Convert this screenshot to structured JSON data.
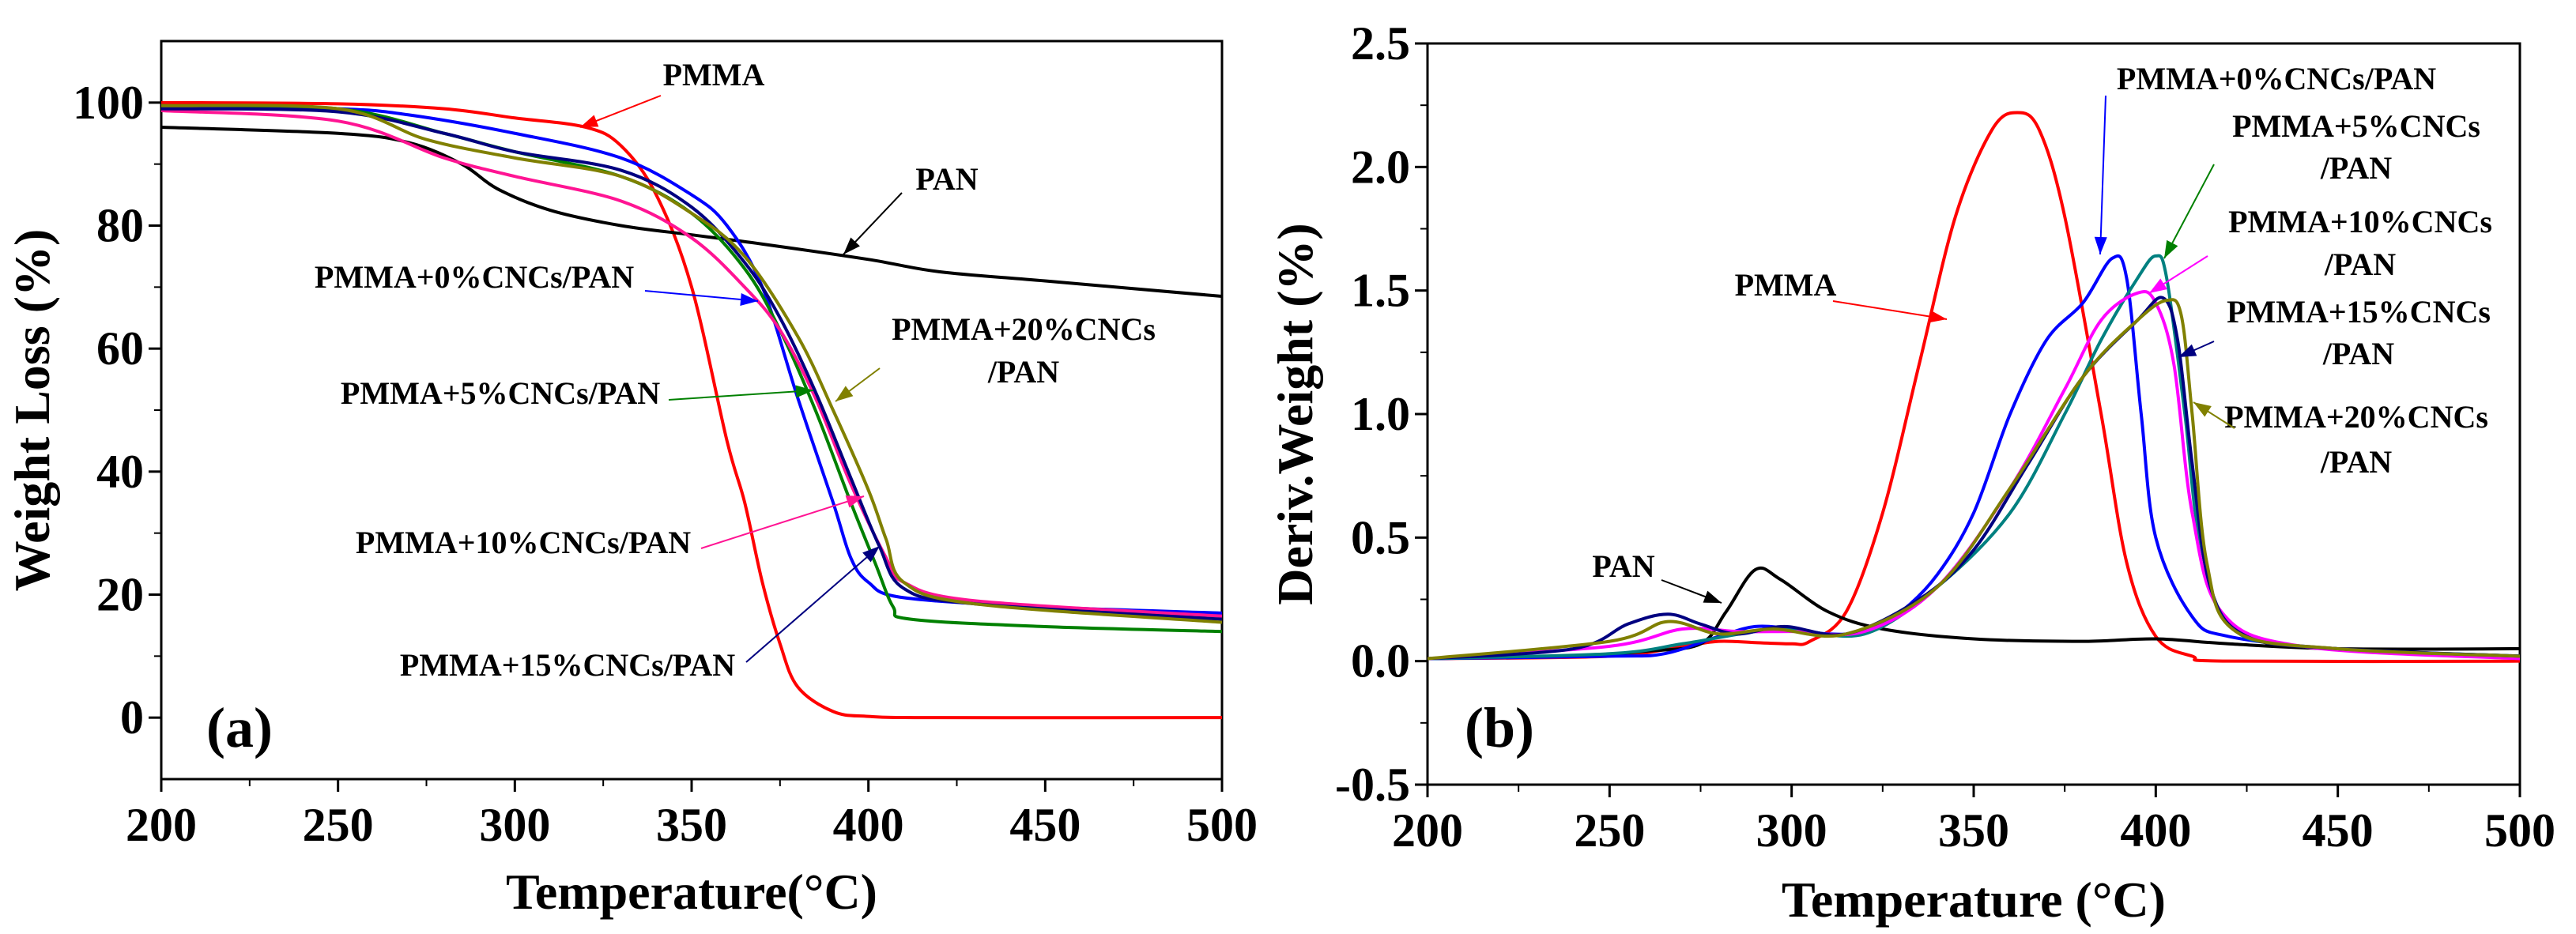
{
  "chart_data": [
    {
      "type": "line",
      "panel_label": "(a)",
      "xlabel": "Temperature(°C)",
      "ylabel": "Weight Loss (%)",
      "xlim": [
        200,
        500
      ],
      "ylim": [
        -10,
        110
      ],
      "xticks": [
        200,
        250,
        300,
        350,
        400,
        450,
        500
      ],
      "yticks": [
        0,
        20,
        40,
        60,
        80,
        100
      ],
      "grid": false,
      "series": [
        {
          "name": "PMMA",
          "color": "#ff0000",
          "points": [
            [
              200,
              100
            ],
            [
              250,
              99.8
            ],
            [
              280,
              99
            ],
            [
              300,
              97.5
            ],
            [
              320,
              96
            ],
            [
              330,
              93
            ],
            [
              340,
              85
            ],
            [
              350,
              70
            ],
            [
              360,
              45
            ],
            [
              365,
              35
            ],
            [
              370,
              22
            ],
            [
              375,
              12
            ],
            [
              380,
              5
            ],
            [
              390,
              1
            ],
            [
              400,
              0.2
            ],
            [
              420,
              0
            ],
            [
              500,
              0
            ]
          ]
        },
        {
          "name": "PAN",
          "color": "#000000",
          "points": [
            [
              200,
              96
            ],
            [
              250,
              95
            ],
            [
              270,
              93.5
            ],
            [
              285,
              90
            ],
            [
              295,
              86
            ],
            [
              310,
              82.5
            ],
            [
              330,
              80
            ],
            [
              350,
              78.5
            ],
            [
              370,
              77
            ],
            [
              400,
              74.5
            ],
            [
              420,
              72.5
            ],
            [
              450,
              71
            ],
            [
              500,
              68.5
            ]
          ]
        },
        {
          "name": "PMMA+0%CNCs/PAN",
          "color": "#0000ff",
          "points": [
            [
              200,
              99.5
            ],
            [
              250,
              99
            ],
            [
              270,
              98
            ],
            [
              300,
              95
            ],
            [
              330,
              91
            ],
            [
              350,
              85
            ],
            [
              360,
              80
            ],
            [
              370,
              70
            ],
            [
              380,
              52
            ],
            [
              390,
              35
            ],
            [
              395,
              26
            ],
            [
              400,
              22
            ],
            [
              410,
              19.5
            ],
            [
              450,
              18
            ],
            [
              500,
              17
            ]
          ]
        },
        {
          "name": "PMMA+5%CNCs/PAN",
          "color": "#008000",
          "points": [
            [
              200,
              99.5
            ],
            [
              250,
              99
            ],
            [
              280,
              95
            ],
            [
              300,
              92
            ],
            [
              330,
              88
            ],
            [
              350,
              82
            ],
            [
              365,
              73
            ],
            [
              375,
              63
            ],
            [
              385,
              50
            ],
            [
              395,
              35
            ],
            [
              402,
              25
            ],
            [
              407,
              18
            ],
            [
              412,
              16
            ],
            [
              450,
              14.8
            ],
            [
              500,
              14
            ]
          ]
        },
        {
          "name": "PMMA+10%CNCs/PAN",
          "color": "#ff1493",
          "points": [
            [
              200,
              98.7
            ],
            [
              250,
              97
            ],
            [
              280,
              91
            ],
            [
              300,
              88
            ],
            [
              330,
              84
            ],
            [
              350,
              78
            ],
            [
              365,
              70
            ],
            [
              375,
              63
            ],
            [
              385,
              52
            ],
            [
              395,
              38
            ],
            [
              405,
              26
            ],
            [
              410,
              22
            ],
            [
              430,
              19
            ],
            [
              500,
              16.5
            ]
          ]
        },
        {
          "name": "PMMA+15%CNCs/PAN",
          "color": "#000080",
          "points": [
            [
              200,
              99
            ],
            [
              250,
              98.5
            ],
            [
              280,
              95
            ],
            [
              300,
              92
            ],
            [
              330,
              89
            ],
            [
              350,
              83
            ],
            [
              365,
              74
            ],
            [
              375,
              65
            ],
            [
              385,
              53
            ],
            [
              395,
              39
            ],
            [
              403,
              28
            ],
            [
              410,
              21
            ],
            [
              430,
              18.5
            ],
            [
              500,
              16
            ]
          ]
        },
        {
          "name": "PMMA+20%CNCs/PAN",
          "color": "#808000",
          "points": [
            [
              200,
              99.5
            ],
            [
              250,
              99
            ],
            [
              275,
              94
            ],
            [
              300,
              91
            ],
            [
              330,
              88
            ],
            [
              350,
              82
            ],
            [
              365,
              75
            ],
            [
              380,
              62
            ],
            [
              390,
              50
            ],
            [
              400,
              37
            ],
            [
              405,
              29
            ],
            [
              410,
              22
            ],
            [
              430,
              18.5
            ],
            [
              500,
              15.5
            ]
          ]
        }
      ],
      "annotations": [
        {
          "lines": [
            "PMMA"
          ],
          "color": "#ff0000"
        },
        {
          "lines": [
            "PAN"
          ],
          "color": "#000000"
        },
        {
          "lines": [
            "PMMA+0%CNCs/PAN"
          ],
          "color": "#0000ff"
        },
        {
          "lines": [
            "PMMA+20%CNCs",
            "/PAN"
          ],
          "color": "#808000"
        },
        {
          "lines": [
            "PMMA+5%CNCs/PAN"
          ],
          "color": "#008000"
        },
        {
          "lines": [
            "PMMA+10%CNCs/PAN"
          ],
          "color": "#ff1493"
        },
        {
          "lines": [
            "PMMA+15%CNCs/PAN"
          ],
          "color": "#000080"
        }
      ]
    },
    {
      "type": "line",
      "panel_label": "(b)",
      "xlabel": "Temperature (°C)",
      "ylabel": "Deriv.Weight (%)",
      "xlim": [
        200,
        500
      ],
      "ylim": [
        -0.5,
        2.5
      ],
      "xticks": [
        200,
        250,
        300,
        350,
        400,
        450,
        500
      ],
      "yticks": [
        "-0.5",
        "0.0",
        "0.5",
        "1.0",
        "1.5",
        "2.0",
        "2.5"
      ],
      "grid": false,
      "series": [
        {
          "name": "PMMA",
          "color": "#ff0000",
          "points": [
            [
              200,
              0.01
            ],
            [
              250,
              0.02
            ],
            [
              270,
              0.06
            ],
            [
              280,
              0.08
            ],
            [
              290,
              0.075
            ],
            [
              300,
              0.07
            ],
            [
              305,
              0.08
            ],
            [
              315,
              0.2
            ],
            [
              325,
              0.6
            ],
            [
              335,
              1.2
            ],
            [
              345,
              1.8
            ],
            [
              355,
              2.15
            ],
            [
              362,
              2.22
            ],
            [
              368,
              2.15
            ],
            [
              375,
              1.8
            ],
            [
              385,
              1.0
            ],
            [
              392,
              0.4
            ],
            [
              400,
              0.1
            ],
            [
              410,
              0.02
            ],
            [
              420,
              0
            ],
            [
              500,
              0
            ]
          ]
        },
        {
          "name": "PAN",
          "color": "#000000",
          "points": [
            [
              200,
              0.01
            ],
            [
              240,
              0.02
            ],
            [
              260,
              0.04
            ],
            [
              275,
              0.07
            ],
            [
              282,
              0.2
            ],
            [
              290,
              0.37
            ],
            [
              297,
              0.33
            ],
            [
              310,
              0.2
            ],
            [
              325,
              0.13
            ],
            [
              350,
              0.09
            ],
            [
              380,
              0.08
            ],
            [
              400,
              0.09
            ],
            [
              420,
              0.07
            ],
            [
              450,
              0.05
            ],
            [
              500,
              0.05
            ]
          ]
        },
        {
          "name": "PMMA+0%CNCs/PAN",
          "color": "#0000ff",
          "points": [
            [
              200,
              0.01
            ],
            [
              250,
              0.02
            ],
            [
              265,
              0.03
            ],
            [
              280,
              0.1
            ],
            [
              290,
              0.14
            ],
            [
              300,
              0.13
            ],
            [
              310,
              0.11
            ],
            [
              320,
              0.12
            ],
            [
              330,
              0.2
            ],
            [
              340,
              0.35
            ],
            [
              350,
              0.6
            ],
            [
              360,
              1.0
            ],
            [
              370,
              1.3
            ],
            [
              380,
              1.45
            ],
            [
              388,
              1.63
            ],
            [
              392,
              1.55
            ],
            [
              396,
              1.0
            ],
            [
              400,
              0.5
            ],
            [
              410,
              0.18
            ],
            [
              420,
              0.1
            ],
            [
              450,
              0.05
            ],
            [
              500,
              0.02
            ]
          ]
        },
        {
          "name": "PMMA+5%CNCs/PAN",
          "color": "#008080",
          "points": [
            [
              200,
              0.01
            ],
            [
              250,
              0.03
            ],
            [
              270,
              0.07
            ],
            [
              290,
              0.12
            ],
            [
              300,
              0.13
            ],
            [
              320,
              0.11
            ],
            [
              340,
              0.3
            ],
            [
              360,
              0.6
            ],
            [
              375,
              1.0
            ],
            [
              385,
              1.3
            ],
            [
              395,
              1.55
            ],
            [
              400,
              1.64
            ],
            [
              403,
              1.55
            ],
            [
              408,
              1.0
            ],
            [
              412,
              0.5
            ],
            [
              420,
              0.15
            ],
            [
              440,
              0.06
            ],
            [
              500,
              0.02
            ]
          ]
        },
        {
          "name": "PMMA+10%CNCs/PAN",
          "color": "#ff00ff",
          "points": [
            [
              200,
              0.01
            ],
            [
              250,
              0.06
            ],
            [
              270,
              0.13
            ],
            [
              285,
              0.12
            ],
            [
              300,
              0.12
            ],
            [
              320,
              0.12
            ],
            [
              340,
              0.3
            ],
            [
              360,
              0.7
            ],
            [
              375,
              1.1
            ],
            [
              385,
              1.38
            ],
            [
              395,
              1.49
            ],
            [
              400,
              1.45
            ],
            [
              405,
              1.2
            ],
            [
              410,
              0.6
            ],
            [
              418,
              0.2
            ],
            [
              440,
              0.06
            ],
            [
              500,
              0.01
            ]
          ]
        },
        {
          "name": "PMMA+15%CNCs/PAN",
          "color": "#000080",
          "points": [
            [
              200,
              0.01
            ],
            [
              240,
              0.05
            ],
            [
              255,
              0.15
            ],
            [
              266,
              0.19
            ],
            [
              275,
              0.15
            ],
            [
              285,
              0.11
            ],
            [
              298,
              0.14
            ],
            [
              315,
              0.11
            ],
            [
              335,
              0.25
            ],
            [
              350,
              0.45
            ],
            [
              365,
              0.8
            ],
            [
              380,
              1.15
            ],
            [
              395,
              1.38
            ],
            [
              402,
              1.47
            ],
            [
              406,
              1.3
            ],
            [
              410,
              0.8
            ],
            [
              415,
              0.3
            ],
            [
              425,
              0.1
            ],
            [
              450,
              0.05
            ],
            [
              500,
              0.02
            ]
          ]
        },
        {
          "name": "PMMA+20%CNCs/PAN",
          "color": "#808000",
          "points": [
            [
              200,
              0.01
            ],
            [
              250,
              0.08
            ],
            [
              266,
              0.16
            ],
            [
              280,
              0.11
            ],
            [
              295,
              0.13
            ],
            [
              315,
              0.11
            ],
            [
              340,
              0.3
            ],
            [
              360,
              0.7
            ],
            [
              380,
              1.15
            ],
            [
              395,
              1.38
            ],
            [
              403,
              1.46
            ],
            [
              407,
              1.4
            ],
            [
              410,
              1.0
            ],
            [
              414,
              0.4
            ],
            [
              422,
              0.12
            ],
            [
              450,
              0.05
            ],
            [
              500,
              0.02
            ]
          ]
        }
      ],
      "annotations": [
        {
          "lines": [
            "PMMA+0%CNCs/PAN"
          ],
          "color": "#0000ff"
        },
        {
          "lines": [
            "PMMA+5%CNCs",
            "/PAN"
          ],
          "color": "#008000"
        },
        {
          "lines": [
            "PMMA+10%CNCs",
            "/PAN"
          ],
          "color": "#ff00ff"
        },
        {
          "lines": [
            "PMMA+15%CNCs",
            "/PAN"
          ],
          "color": "#000080"
        },
        {
          "lines": [
            "PMMA+20%CNCs",
            "/PAN"
          ],
          "color": "#808000"
        },
        {
          "lines": [
            "PMMA"
          ],
          "color": "#ff0000"
        },
        {
          "lines": [
            "PAN"
          ],
          "color": "#000000"
        }
      ]
    }
  ]
}
